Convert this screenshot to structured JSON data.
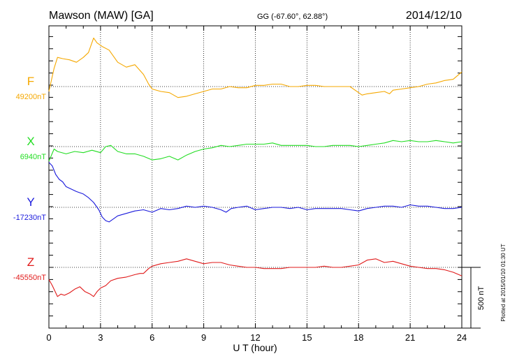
{
  "header": {
    "station": "Mawson (MAW)  [GA]",
    "coords": "GG (-67.60°,  62.88°)",
    "date": "2014/12/10"
  },
  "side_note": "Plotted at 2015/01/10 01:30 UT",
  "scale_label": "500 nT",
  "chart_data": {
    "type": "line",
    "title": "Mawson (MAW)  [GA]",
    "xlabel": "U T (hour)",
    "ylabel": "",
    "xlim": [
      0,
      24
    ],
    "x_ticks": [
      0,
      3,
      6,
      9,
      12,
      15,
      18,
      21,
      24
    ],
    "grid": true,
    "scale_bar_nT": 500,
    "series": [
      {
        "name": "F",
        "color": "#f5a800",
        "baseline_label": "49200nT",
        "baseline_nT": 49200,
        "x": [
          0,
          0.3,
          0.5,
          0.8,
          1.2,
          1.6,
          2,
          2.3,
          2.6,
          2.8,
          3.1,
          3.5,
          4,
          4.5,
          5,
          5.5,
          5.8,
          6,
          6.5,
          7,
          7.5,
          8,
          8.5,
          9,
          9.5,
          10,
          10.5,
          11,
          11.5,
          12,
          12.5,
          13,
          13.5,
          14,
          14.5,
          15,
          15.5,
          16,
          16.5,
          17,
          17.5,
          18,
          18.2,
          18.5,
          19,
          19.5,
          19.8,
          20,
          20.5,
          21,
          21.5,
          22,
          22.5,
          23,
          23.5,
          24
        ],
        "y": [
          49160,
          49350,
          49440,
          49430,
          49420,
          49400,
          49440,
          49480,
          49600,
          49560,
          49530,
          49500,
          49400,
          49360,
          49380,
          49300,
          49220,
          49180,
          49160,
          49150,
          49110,
          49120,
          49140,
          49160,
          49180,
          49180,
          49200,
          49190,
          49190,
          49210,
          49210,
          49220,
          49220,
          49200,
          49200,
          49210,
          49210,
          49200,
          49200,
          49200,
          49200,
          49150,
          49130,
          49140,
          49150,
          49160,
          49140,
          49170,
          49180,
          49190,
          49200,
          49220,
          49230,
          49250,
          49260,
          49320
        ]
      },
      {
        "name": "X",
        "color": "#22dd22",
        "baseline_label": "6940nT",
        "baseline_nT": 6940,
        "x": [
          0,
          0.3,
          0.5,
          1,
          1.5,
          2,
          2.5,
          3,
          3.3,
          3.6,
          4,
          4.5,
          5,
          5.5,
          6,
          6.5,
          7,
          7.5,
          8,
          8.5,
          9,
          9.5,
          10,
          10.5,
          11,
          11.5,
          12,
          12.5,
          13,
          13.5,
          14,
          14.5,
          15,
          15.5,
          16,
          16.5,
          17,
          17.5,
          18,
          18.5,
          19,
          19.5,
          20,
          20.5,
          21,
          21.5,
          22,
          22.5,
          23,
          23.5,
          24
        ],
        "y": [
          6820,
          6920,
          6900,
          6880,
          6900,
          6890,
          6910,
          6890,
          6940,
          6950,
          6900,
          6880,
          6880,
          6860,
          6830,
          6840,
          6860,
          6830,
          6870,
          6900,
          6920,
          6930,
          6950,
          6940,
          6950,
          6960,
          6960,
          6960,
          6970,
          6950,
          6950,
          6950,
          6950,
          6940,
          6940,
          6950,
          6950,
          6950,
          6940,
          6950,
          6960,
          6970,
          6990,
          6980,
          6990,
          6980,
          6980,
          6990,
          6980,
          6970,
          6980
        ]
      },
      {
        "name": "Y",
        "color": "#1a1adc",
        "baseline_label": "-17230nT",
        "baseline_nT": -17230,
        "x": [
          0,
          0.2,
          0.4,
          0.6,
          0.8,
          1,
          1.3,
          1.6,
          2,
          2.3,
          2.6,
          2.9,
          3.1,
          3.3,
          3.5,
          3.8,
          4,
          4.5,
          5,
          5.5,
          6,
          6.5,
          7,
          7.5,
          8,
          8.5,
          9,
          9.5,
          10,
          10.3,
          10.6,
          11,
          11.5,
          12,
          12.5,
          13,
          13.5,
          14,
          14.5,
          15,
          15.5,
          16,
          16.5,
          17,
          17.5,
          18,
          18.5,
          19,
          19.5,
          20,
          20.5,
          21,
          21.5,
          22,
          22.5,
          23,
          23.5,
          24
        ],
        "y": [
          -16860,
          -16890,
          -16960,
          -17000,
          -17020,
          -17060,
          -17080,
          -17100,
          -17120,
          -17150,
          -17190,
          -17250,
          -17310,
          -17340,
          -17350,
          -17320,
          -17300,
          -17280,
          -17260,
          -17250,
          -17270,
          -17240,
          -17250,
          -17240,
          -17220,
          -17230,
          -17220,
          -17230,
          -17250,
          -17270,
          -17240,
          -17230,
          -17220,
          -17250,
          -17240,
          -17230,
          -17230,
          -17240,
          -17230,
          -17250,
          -17240,
          -17240,
          -17240,
          -17240,
          -17250,
          -17260,
          -17240,
          -17230,
          -17220,
          -17220,
          -17230,
          -17210,
          -17220,
          -17220,
          -17230,
          -17240,
          -17240,
          -17230
        ]
      },
      {
        "name": "Z",
        "color": "#e01a1a",
        "baseline_label": "-45550nT",
        "baseline_nT": -45550,
        "x": [
          0,
          0.2,
          0.4,
          0.5,
          0.7,
          0.9,
          1.2,
          1.5,
          1.8,
          2.1,
          2.4,
          2.6,
          2.8,
          3,
          3.3,
          3.6,
          4,
          4.5,
          5,
          5.3,
          5.5,
          5.8,
          6,
          6.5,
          7,
          7.5,
          8,
          8.5,
          9,
          9.5,
          10,
          10.5,
          11,
          11.5,
          12,
          12.5,
          13,
          13.5,
          14,
          14.5,
          15,
          15.5,
          16,
          16.5,
          17,
          17.5,
          18,
          18.5,
          19,
          19.5,
          20,
          20.5,
          21,
          21.5,
          22,
          22.5,
          23,
          23.5,
          24
        ],
        "y": [
          -45650,
          -45700,
          -45760,
          -45790,
          -45770,
          -45780,
          -45760,
          -45730,
          -45710,
          -45750,
          -45770,
          -45790,
          -45750,
          -45720,
          -45700,
          -45660,
          -45640,
          -45630,
          -45610,
          -45600,
          -45600,
          -45560,
          -45540,
          -45520,
          -45510,
          -45500,
          -45480,
          -45500,
          -45520,
          -45510,
          -45510,
          -45530,
          -45540,
          -45550,
          -45550,
          -45560,
          -45560,
          -45560,
          -45550,
          -45550,
          -45550,
          -45550,
          -45540,
          -45550,
          -45550,
          -45540,
          -45530,
          -45490,
          -45480,
          -45510,
          -45500,
          -45520,
          -45540,
          -45550,
          -45560,
          -45560,
          -45570,
          -45590,
          -45620
        ]
      }
    ]
  }
}
